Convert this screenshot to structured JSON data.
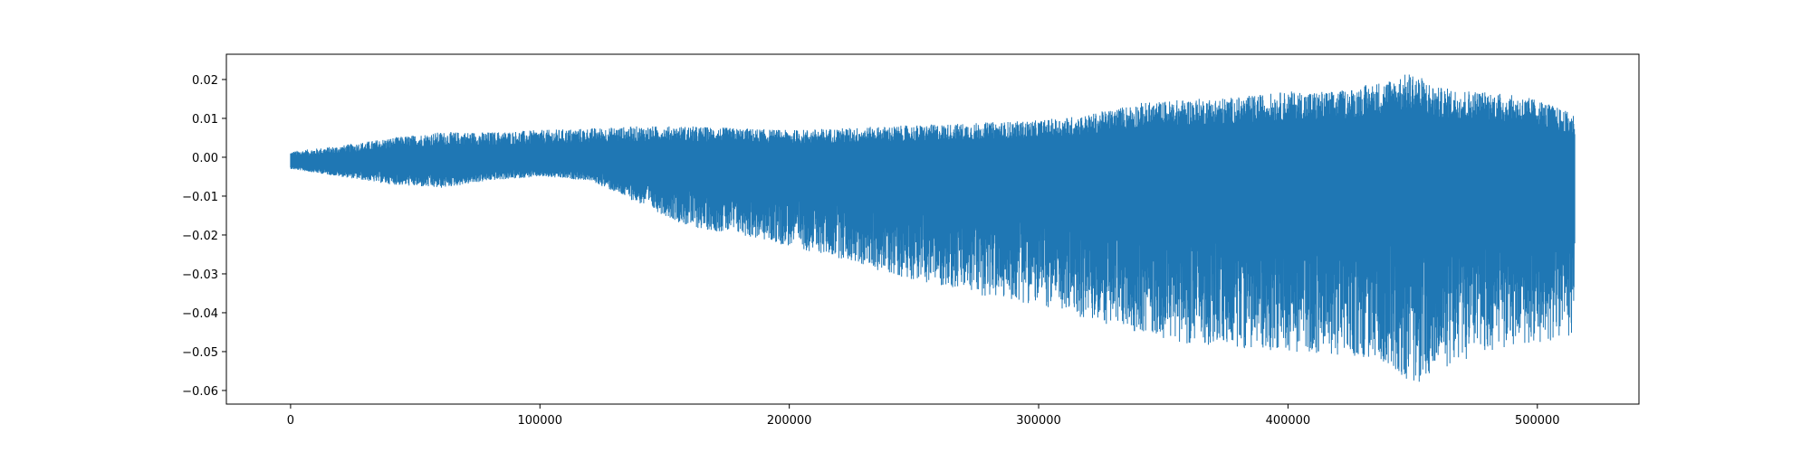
{
  "chart_data": {
    "type": "line",
    "title": "",
    "xlabel": "",
    "ylabel": "",
    "xlim": [
      -25750,
      540750
    ],
    "ylim": [
      -0.0635,
      0.0265
    ],
    "grid": false,
    "legend": "none",
    "x_ticks": [
      0,
      100000,
      200000,
      300000,
      400000,
      500000
    ],
    "x_tick_labels": [
      "0",
      "100000",
      "200000",
      "300000",
      "400000",
      "500000"
    ],
    "y_ticks": [
      0.02,
      0.01,
      0.0,
      -0.01,
      -0.02,
      -0.03,
      -0.04,
      -0.05,
      -0.06
    ],
    "y_tick_labels": [
      "0.02",
      "0.01",
      "0.00",
      "−0.01",
      "−0.02",
      "−0.03",
      "−0.04",
      "−0.05",
      "−0.06"
    ],
    "series": [
      {
        "color": "#1f77b4",
        "x_range": [
          0,
          515000
        ],
        "envelope_x": [
          0,
          20000,
          40000,
          60000,
          80000,
          100000,
          120000,
          140000,
          160000,
          180000,
          200000,
          220000,
          240000,
          260000,
          280000,
          300000,
          320000,
          340000,
          360000,
          380000,
          400000,
          420000,
          440000,
          450000,
          460000,
          480000,
          500000,
          515000
        ],
        "envelope_upper": [
          0.0015,
          0.003,
          0.005,
          0.0065,
          0.0065,
          0.007,
          0.0075,
          0.008,
          0.008,
          0.0075,
          0.007,
          0.0075,
          0.008,
          0.0085,
          0.009,
          0.0095,
          0.011,
          0.014,
          0.015,
          0.0155,
          0.017,
          0.017,
          0.02,
          0.022,
          0.018,
          0.017,
          0.015,
          0.011
        ],
        "envelope_lower": [
          -0.003,
          -0.005,
          -0.007,
          -0.008,
          -0.006,
          -0.005,
          -0.006,
          -0.012,
          -0.018,
          -0.02,
          -0.023,
          -0.026,
          -0.03,
          -0.033,
          -0.036,
          -0.038,
          -0.042,
          -0.045,
          -0.048,
          -0.049,
          -0.05,
          -0.051,
          -0.053,
          -0.059,
          -0.055,
          -0.05,
          -0.048,
          -0.046
        ],
        "baseline": -0.002
      }
    ]
  }
}
